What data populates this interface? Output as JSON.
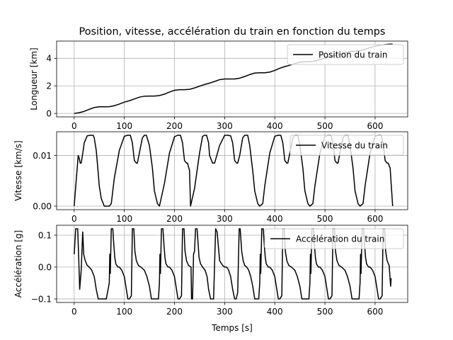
{
  "figure": {
    "title": "Position, vitesse, accélération du train en fonction du temps",
    "xlabel": "Temps [s]"
  },
  "chart_data": [
    {
      "type": "line",
      "panel": "position",
      "ylabel": "Longueur [km]",
      "xlim": [
        -35,
        665
      ],
      "ylim": [
        -0.25,
        5.25
      ],
      "xticks": [
        0,
        100,
        200,
        300,
        400,
        500,
        600
      ],
      "yticks": [
        0,
        2,
        4
      ],
      "grid": true,
      "legend": "top-right",
      "series": [
        {
          "name": "Position du train",
          "color": "#000000",
          "x": [
            0,
            10,
            20,
            30,
            40,
            50,
            60,
            70,
            80,
            90,
            100,
            110,
            120,
            130,
            140,
            150,
            160,
            170,
            180,
            190,
            200,
            210,
            220,
            230,
            240,
            250,
            260,
            270,
            280,
            290,
            300,
            310,
            320,
            330,
            340,
            350,
            360,
            370,
            380,
            390,
            400,
            410,
            420,
            430,
            440,
            450,
            460,
            470,
            480,
            490,
            500,
            510,
            520,
            530,
            540,
            550,
            560,
            570,
            580,
            590,
            600,
            610,
            620,
            630,
            635
          ],
          "y": [
            0.0,
            0.05,
            0.15,
            0.3,
            0.43,
            0.48,
            0.48,
            0.49,
            0.56,
            0.68,
            0.82,
            0.92,
            1.05,
            1.18,
            1.25,
            1.26,
            1.26,
            1.3,
            1.4,
            1.55,
            1.68,
            1.72,
            1.72,
            1.75,
            1.85,
            1.98,
            2.1,
            2.2,
            2.32,
            2.45,
            2.5,
            2.5,
            2.5,
            2.56,
            2.68,
            2.82,
            2.93,
            2.95,
            2.95,
            3.0,
            3.12,
            3.28,
            3.4,
            3.5,
            3.62,
            3.72,
            3.75,
            3.76,
            3.8,
            3.9,
            4.02,
            4.12,
            4.2,
            4.28,
            4.4,
            4.5,
            4.52,
            4.55,
            4.65,
            4.78,
            4.88,
            4.95,
            5.0,
            5.03,
            5.03
          ]
        }
      ]
    },
    {
      "type": "line",
      "panel": "vitesse",
      "ylabel": "Vitesse [km/s]",
      "xlim": [
        -35,
        665
      ],
      "ylim": [
        -0.0007,
        0.0147
      ],
      "xticks": [
        0,
        100,
        200,
        300,
        400,
        500,
        600
      ],
      "yticks": [
        0.0,
        0.01
      ],
      "ytick_labels": [
        "0.00",
        "0.01"
      ],
      "grid": true,
      "legend": "top-right",
      "series": [
        {
          "name": "Vitesse du train",
          "color": "#000000",
          "x": [
            0,
            8,
            10,
            12,
            14,
            18,
            20,
            26,
            32,
            38,
            40,
            44,
            48,
            50,
            54,
            60,
            66,
            70,
            74,
            80,
            90,
            100,
            106,
            112,
            116,
            120,
            124,
            126,
            130,
            136,
            140,
            144,
            150,
            156,
            160,
            166,
            170,
            180,
            190,
            200,
            206,
            212,
            216,
            220,
            224,
            226,
            230,
            232,
            240,
            250,
            256,
            260,
            264,
            268,
            270,
            276,
            280,
            290,
            300,
            306,
            312,
            316,
            320,
            324,
            326,
            330,
            336,
            340,
            346,
            350,
            356,
            360,
            366,
            370,
            376,
            380,
            390,
            400,
            406,
            412,
            416,
            420,
            424,
            426,
            430,
            436,
            440,
            446,
            450,
            456,
            460,
            466,
            470,
            476,
            480,
            490,
            500,
            506,
            512,
            516,
            520,
            524,
            526,
            530,
            536,
            540,
            546,
            550,
            556,
            560,
            566,
            570,
            576,
            580,
            590,
            600,
            606,
            612,
            616,
            620,
            624,
            626,
            630,
            635
          ],
          "y": [
            0.0,
            0.01,
            0.0095,
            0.0085,
            0.0085,
            0.011,
            0.0125,
            0.0139,
            0.014,
            0.014,
            0.0135,
            0.011,
            0.0065,
            0.004,
            0.0015,
            0.0,
            0.0,
            0.0,
            0.0005,
            0.0055,
            0.011,
            0.0138,
            0.014,
            0.014,
            0.0125,
            0.009,
            0.0085,
            0.0085,
            0.0105,
            0.0135,
            0.014,
            0.014,
            0.012,
            0.0075,
            0.003,
            0.0005,
            0.0,
            0.0045,
            0.0105,
            0.0137,
            0.014,
            0.014,
            0.0125,
            0.009,
            0.0085,
            0.0085,
            0.007,
            0.0,
            0.0035,
            0.0105,
            0.0138,
            0.014,
            0.014,
            0.0125,
            0.01,
            0.0085,
            0.0085,
            0.012,
            0.014,
            0.014,
            0.0139,
            0.0125,
            0.009,
            0.0085,
            0.0085,
            0.01,
            0.0135,
            0.014,
            0.014,
            0.012,
            0.007,
            0.003,
            0.0005,
            0.0,
            0.0005,
            0.004,
            0.0105,
            0.0138,
            0.014,
            0.014,
            0.0125,
            0.009,
            0.0085,
            0.0085,
            0.0105,
            0.0135,
            0.014,
            0.014,
            0.012,
            0.0075,
            0.003,
            0.0005,
            0.0,
            0.0005,
            0.004,
            0.0105,
            0.0138,
            0.014,
            0.014,
            0.0125,
            0.009,
            0.0085,
            0.0085,
            0.0105,
            0.0135,
            0.014,
            0.014,
            0.012,
            0.0075,
            0.003,
            0.0005,
            0.0,
            0.0005,
            0.004,
            0.0105,
            0.0138,
            0.014,
            0.014,
            0.0125,
            0.009,
            0.0085,
            0.0085,
            0.0075,
            0.0
          ]
        }
      ]
    },
    {
      "type": "line",
      "panel": "acceleration",
      "ylabel": "Accélération [g]",
      "xlim": [
        -35,
        665
      ],
      "ylim": [
        -0.111,
        0.131
      ],
      "xticks": [
        0,
        100,
        200,
        300,
        400,
        500,
        600
      ],
      "yticks": [
        -0.1,
        0.0,
        0.1
      ],
      "ytick_labels": [
        "−0.1",
        "0.0",
        "0.1"
      ],
      "grid": true,
      "legend": "top-right",
      "series": [
        {
          "name": "Accélération du train",
          "color": "#000000",
          "x": [
            0,
            3,
            7,
            9,
            11,
            14,
            17,
            19,
            22,
            26,
            30,
            35,
            40,
            44,
            48,
            52,
            58,
            64,
            70,
            71,
            72,
            74,
            77,
            79,
            81,
            83,
            87,
            90,
            95,
            100,
            104,
            107,
            110,
            114,
            116,
            119,
            121,
            124,
            128,
            133,
            140,
            145,
            150,
            154,
            158,
            164,
            168,
            170,
            171,
            172,
            174,
            177,
            179,
            181,
            183,
            187,
            190,
            195,
            200,
            204,
            207,
            210,
            214,
            216,
            219,
            221,
            224,
            228,
            233,
            234,
            236,
            238,
            240,
            242,
            245,
            249,
            252,
            256,
            261,
            265,
            268,
            272,
            275,
            278,
            282,
            285,
            290,
            296,
            300,
            304,
            308,
            312,
            316,
            320,
            323,
            326,
            329,
            331,
            334,
            337,
            340,
            344,
            348,
            352,
            356,
            360,
            364,
            368,
            370,
            371,
            372,
            374,
            377,
            379,
            381,
            383,
            387,
            390,
            395,
            400,
            404,
            407,
            410,
            414,
            416,
            419,
            421,
            424,
            428,
            433,
            440,
            445,
            450,
            454,
            458,
            464,
            468,
            470,
            471,
            472,
            474,
            477,
            479,
            481,
            483,
            487,
            490,
            495,
            500,
            504,
            507,
            510,
            514,
            516,
            519,
            521,
            524,
            528,
            533,
            540,
            545,
            550,
            554,
            558,
            564,
            568,
            570,
            571,
            572,
            574,
            577,
            579,
            581,
            583,
            587,
            590,
            595,
            600,
            604,
            607,
            610,
            614,
            616,
            619,
            621,
            624,
            628,
            631,
            632
          ],
          "y": [
            0.04,
            0.12,
            0.12,
            0.03,
            -0.07,
            -0.01,
            0.11,
            0.04,
            0.02,
            0.005,
            0.0,
            -0.01,
            -0.03,
            -0.07,
            -0.1,
            -0.1,
            -0.1,
            -0.1,
            -0.05,
            0.04,
            -0.02,
            0.12,
            0.12,
            0.07,
            0.03,
            0.01,
            0.0,
            0.0,
            -0.01,
            -0.03,
            -0.07,
            -0.1,
            -0.1,
            -0.09,
            0.12,
            0.12,
            0.05,
            0.02,
            0.005,
            0.0,
            -0.01,
            -0.03,
            -0.06,
            -0.1,
            -0.1,
            -0.1,
            -0.1,
            -0.05,
            0.04,
            -0.02,
            0.12,
            0.12,
            0.07,
            0.03,
            0.01,
            0.0,
            0.0,
            -0.01,
            -0.03,
            -0.07,
            -0.1,
            -0.1,
            -0.09,
            0.12,
            0.12,
            0.05,
            0.02,
            0.005,
            0.0,
            -0.1,
            -0.1,
            0.04,
            0.05,
            0.12,
            0.12,
            0.03,
            0.01,
            0.0,
            -0.01,
            -0.03,
            -0.07,
            -0.1,
            -0.1,
            -0.1,
            0.12,
            0.11,
            0.02,
            0.005,
            0.0,
            0.0,
            -0.01,
            -0.03,
            -0.07,
            -0.1,
            -0.1,
            -0.08,
            0.12,
            0.12,
            0.05,
            0.02,
            0.005,
            0.0,
            -0.01,
            -0.03,
            -0.06,
            -0.1,
            -0.1,
            -0.1,
            -0.05,
            0.04,
            -0.02,
            0.12,
            0.12,
            0.07,
            0.03,
            0.01,
            0.0,
            0.0,
            -0.01,
            -0.03,
            -0.07,
            -0.1,
            -0.1,
            -0.09,
            0.12,
            0.12,
            0.05,
            0.02,
            0.005,
            0.0,
            -0.01,
            -0.03,
            -0.06,
            -0.1,
            -0.1,
            -0.1,
            -0.1,
            -0.05,
            0.04,
            -0.02,
            0.12,
            0.12,
            0.07,
            0.03,
            0.01,
            0.0,
            0.0,
            -0.01,
            -0.03,
            -0.07,
            -0.1,
            -0.1,
            -0.09,
            0.12,
            0.12,
            0.05,
            0.02,
            0.005,
            0.0,
            -0.01,
            -0.03,
            -0.06,
            -0.1,
            -0.1,
            -0.1,
            -0.1,
            -0.05,
            0.04,
            -0.02,
            0.12,
            0.12,
            0.07,
            0.03,
            0.01,
            0.0,
            0.0,
            -0.01,
            -0.03,
            -0.07,
            -0.1,
            -0.1,
            -0.09,
            0.12,
            0.12,
            0.05,
            0.02,
            0.005,
            -0.06,
            -0.035
          ]
        }
      ]
    }
  ]
}
